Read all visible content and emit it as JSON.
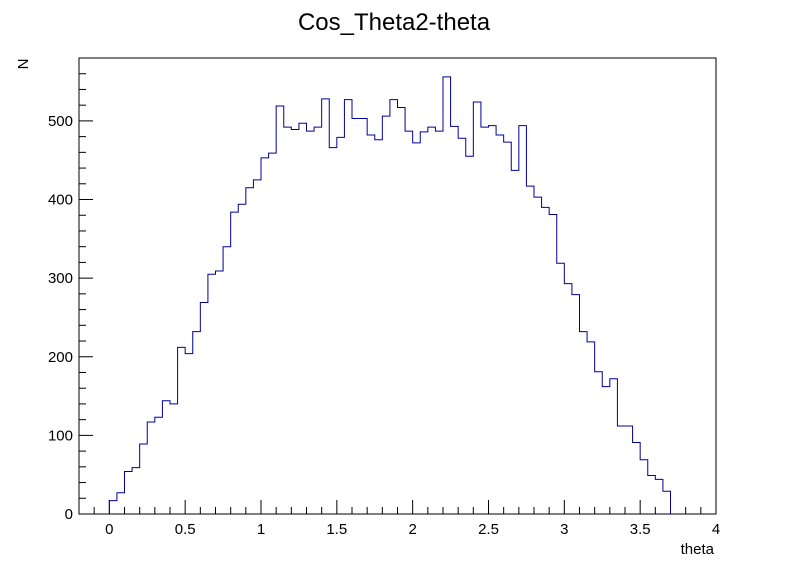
{
  "chart_data": {
    "type": "histogram",
    "title": "Cos_Theta2-theta",
    "xlabel": "theta",
    "ylabel": "N",
    "xlim": [
      -0.2,
      4.0
    ],
    "ylim": [
      0,
      580
    ],
    "bin_width": 0.05,
    "first_bin_low": 0.0,
    "line_color": "#000099",
    "x_ticks": [
      0,
      0.5,
      1,
      1.5,
      2,
      2.5,
      3,
      3.5,
      4
    ],
    "x_tick_labels": [
      "0",
      "0.5",
      "1",
      "1.5",
      "2",
      "2.5",
      "3",
      "3.5",
      "4"
    ],
    "y_ticks": [
      0,
      100,
      200,
      300,
      400,
      500
    ],
    "y_tick_labels": [
      "0",
      "100",
      "200",
      "300",
      "400",
      "500"
    ],
    "values": [
      17,
      27,
      54,
      59,
      89,
      117,
      123,
      144,
      140,
      212,
      204,
      232,
      269,
      305,
      309,
      340,
      384,
      394,
      415,
      425,
      453,
      459,
      519,
      492,
      489,
      497,
      487,
      492,
      528,
      466,
      479,
      527,
      503,
      503,
      482,
      476,
      506,
      527,
      517,
      487,
      472,
      486,
      492,
      487,
      556,
      493,
      478,
      455,
      524,
      492,
      494,
      482,
      473,
      437,
      494,
      417,
      403,
      390,
      381,
      319,
      293,
      279,
      232,
      219,
      181,
      162,
      172,
      112,
      112,
      91,
      69,
      49,
      44,
      29
    ]
  }
}
